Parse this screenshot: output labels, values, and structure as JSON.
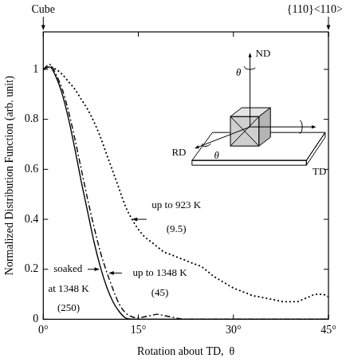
{
  "chart_data": {
    "type": "line",
    "x_label": "Rotation about TD,  θ",
    "y_label": "Normalized Distribution Function (arb. unit)",
    "x": [
      0,
      1,
      2,
      3,
      4,
      5,
      6,
      7,
      8,
      9,
      10,
      11,
      12,
      13,
      14,
      15,
      16,
      17,
      18,
      19,
      20,
      21,
      22,
      23,
      24,
      25,
      26,
      27,
      28,
      29,
      30,
      31,
      32,
      33,
      34,
      35,
      36,
      37,
      38,
      39,
      40,
      41,
      42,
      43,
      44,
      45
    ],
    "xlim": [
      0,
      45
    ],
    "xticks": [
      {
        "value": 0,
        "label": "0°"
      },
      {
        "value": 15,
        "label": "15°"
      },
      {
        "value": 30,
        "label": "30°"
      },
      {
        "value": 45,
        "label": "45°"
      }
    ],
    "ylim": [
      0,
      1.15
    ],
    "yticks": [
      0,
      0.2,
      0.4,
      0.6,
      0.8,
      1
    ],
    "grid": false,
    "top_labels": [
      {
        "x": 0,
        "text": "Cube"
      },
      {
        "x": 45,
        "text": "{110}<110>"
      }
    ],
    "inset_labels": {
      "normal": "ND",
      "rolling": "RD",
      "transverse": "TD",
      "angle": "θ"
    },
    "series": [
      {
        "label": [
          "up to 923 K",
          "(9.5)"
        ],
        "color": "#000000",
        "line_style": "dotted",
        "values": [
          1.0,
          1.01,
          1.0,
          0.98,
          0.95,
          0.92,
          0.88,
          0.84,
          0.79,
          0.73,
          0.66,
          0.59,
          0.52,
          0.45,
          0.4,
          0.36,
          0.33,
          0.31,
          0.29,
          0.27,
          0.26,
          0.25,
          0.24,
          0.23,
          0.22,
          0.21,
          0.19,
          0.17,
          0.155,
          0.14,
          0.125,
          0.115,
          0.105,
          0.095,
          0.09,
          0.085,
          0.08,
          0.075,
          0.07,
          0.07,
          0.07,
          0.08,
          0.09,
          0.1,
          0.1,
          0.09
        ]
      },
      {
        "label": [
          "up to 1348 K",
          "(45)"
        ],
        "color": "#000000",
        "line_style": "dashdot",
        "values": [
          1.0,
          1.02,
          0.98,
          0.92,
          0.83,
          0.72,
          0.6,
          0.48,
          0.37,
          0.27,
          0.19,
          0.12,
          0.06,
          0.025,
          0.01,
          0.005,
          0.01,
          0.015,
          0.02,
          0.015,
          0.01,
          0.005,
          0,
          0,
          0,
          0,
          0,
          0,
          0,
          0,
          0,
          0,
          0,
          0,
          0,
          0,
          0,
          0,
          0,
          0,
          0,
          0,
          0,
          0,
          0,
          0
        ]
      },
      {
        "label": [
          "soaked",
          "at 1348 K",
          "(250)"
        ],
        "color": "#000000",
        "line_style": "solid",
        "values": [
          1.0,
          1.01,
          0.97,
          0.9,
          0.8,
          0.68,
          0.55,
          0.43,
          0.31,
          0.21,
          0.13,
          0.07,
          0.03,
          0.005,
          0,
          0,
          0,
          0,
          0,
          0,
          0,
          0,
          0,
          0,
          0,
          0,
          0,
          0,
          0,
          0,
          0,
          0,
          0,
          0,
          0,
          0,
          0,
          0,
          0,
          0,
          0,
          0,
          0,
          0,
          0,
          0
        ]
      }
    ]
  }
}
